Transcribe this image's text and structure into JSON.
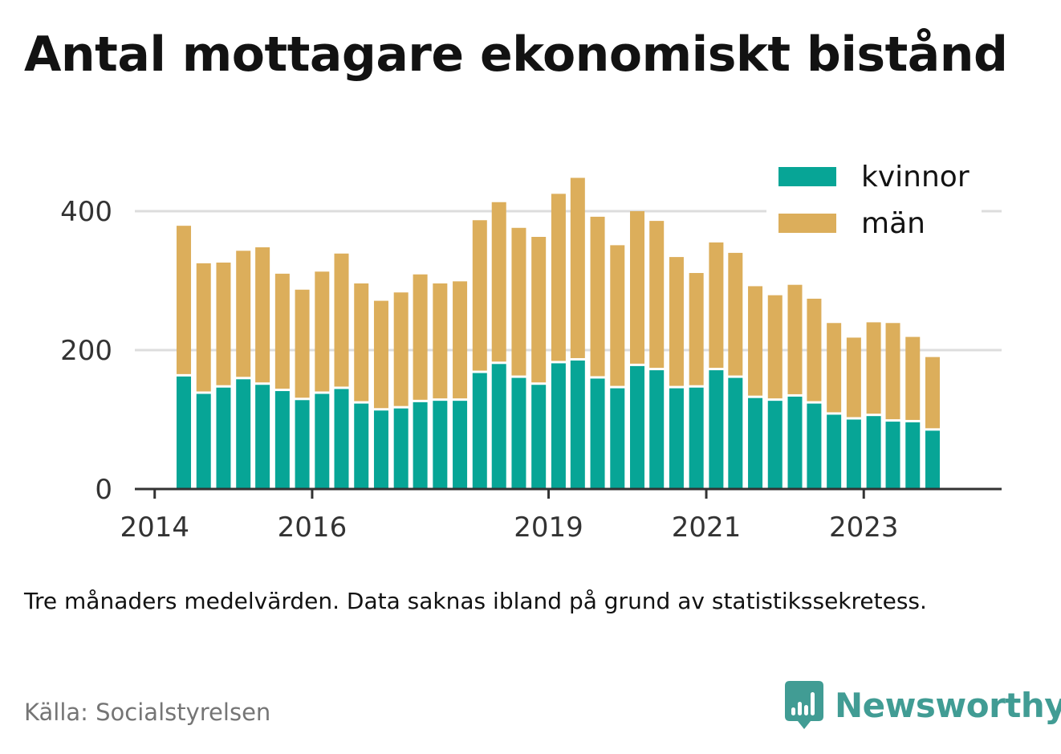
{
  "title": "Antal mottagare ekonomiskt bistånd",
  "note": "Tre månaders medelvärden. Data saknas ibland på grund av statistikssekretess.",
  "source": "Källa: Socialstyrelsen",
  "brand": {
    "name": "Newsworthy",
    "icon": "newsworthy-logo-icon",
    "color": "#419c94"
  },
  "chart_data": {
    "type": "bar",
    "stacked": true,
    "title": "Antal mottagare ekonomiskt bistånd",
    "xlabel": "",
    "ylabel": "",
    "ylim": [
      0,
      460
    ],
    "yticks": [
      0,
      200,
      400
    ],
    "xlim": [
      "2013-10-01",
      "2024-10-01"
    ],
    "xticks": [
      {
        "label": "2014",
        "date": "2014-01-01"
      },
      {
        "label": "2016",
        "date": "2016-01-01"
      },
      {
        "label": "2019",
        "date": "2019-01-01"
      },
      {
        "label": "2021",
        "date": "2021-01-01"
      },
      {
        "label": "2023",
        "date": "2023-01-01"
      }
    ],
    "grid": true,
    "legend_position": "top-right",
    "x": [
      "2014-05",
      "2014-08",
      "2014-11",
      "2015-02",
      "2015-05",
      "2015-08",
      "2015-11",
      "2016-02",
      "2016-05",
      "2016-08",
      "2016-11",
      "2017-02",
      "2017-05",
      "2017-08",
      "2017-11",
      "2018-02",
      "2018-05",
      "2018-08",
      "2018-11",
      "2019-02",
      "2019-05",
      "2019-08",
      "2019-11",
      "2020-02",
      "2020-05",
      "2020-08",
      "2020-11",
      "2021-02",
      "2021-05",
      "2021-08",
      "2021-11",
      "2022-02",
      "2022-05",
      "2022-08",
      "2022-11",
      "2023-02",
      "2023-05",
      "2023-08",
      "2023-11"
    ],
    "series": [
      {
        "name": "kvinnor",
        "color": "#07a596",
        "values": [
          162,
          137,
          146,
          158,
          150,
          141,
          128,
          137,
          144,
          123,
          113,
          116,
          125,
          127,
          127,
          167,
          180,
          160,
          150,
          181,
          185,
          159,
          145,
          177,
          171,
          145,
          146,
          171,
          160,
          131,
          127,
          133,
          123,
          107,
          100,
          105,
          97,
          96,
          84
        ]
      },
      {
        "name": "män",
        "color": "#dcae5b",
        "values": [
          217,
          188,
          180,
          185,
          198,
          169,
          159,
          176,
          195,
          173,
          158,
          167,
          184,
          169,
          172,
          220,
          233,
          216,
          213,
          244,
          263,
          233,
          206,
          223,
          215,
          189,
          165,
          184,
          180,
          161,
          152,
          161,
          151,
          132,
          118,
          135,
          142,
          123,
          106
        ]
      }
    ]
  }
}
